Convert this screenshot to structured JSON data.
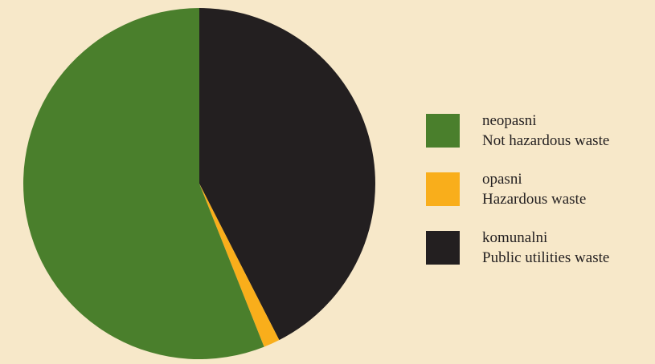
{
  "chart_data": {
    "type": "pie",
    "slices": [
      {
        "label": "komunalni",
        "label_en": "Public utilities waste",
        "value": 42.5,
        "color": "#231f20"
      },
      {
        "label": "opasni",
        "label_en": "Hazardous waste",
        "value": 1.5,
        "color": "#f9ae1b"
      },
      {
        "label": "neopasni",
        "label_en": "Not hazardous waste",
        "value": 56.0,
        "color": "#4a7f2c"
      }
    ],
    "start_angle_deg": 0,
    "direction": "clockwise",
    "legend_placement": "right",
    "background": "#f7e8c9"
  },
  "legend": {
    "items": [
      {
        "label": "neopasni",
        "label_en": "Not hazardous waste",
        "color": "#4a7f2c"
      },
      {
        "label": "opasni",
        "label_en": "Hazardous waste",
        "color": "#f9ae1b"
      },
      {
        "label": "komunalni",
        "label_en": "Public utilities waste",
        "color": "#231f20"
      }
    ]
  }
}
